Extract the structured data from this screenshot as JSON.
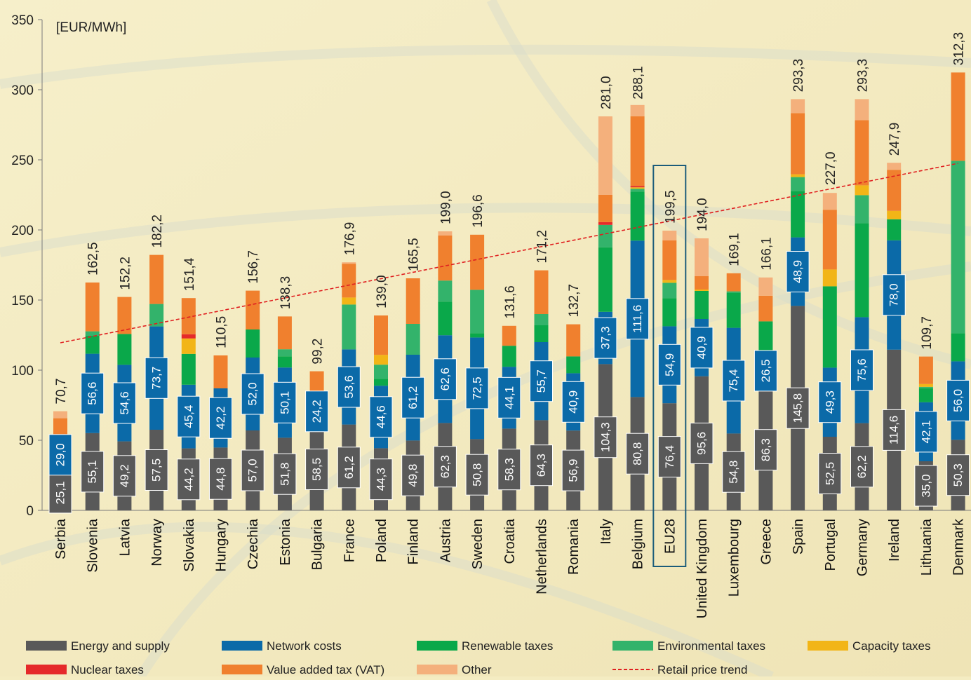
{
  "chart_data": {
    "type": "bar",
    "stacked": true,
    "unit_label": "[EUR/MWh]",
    "ylim": [
      0,
      350
    ],
    "yticks": [
      0,
      50,
      100,
      150,
      200,
      250,
      300,
      350
    ],
    "grid": false,
    "legend_position": "bottom",
    "categories": [
      "Serbia",
      "Slovenia",
      "Latvia",
      "Norway",
      "Slovakia",
      "Hungary",
      "Czechia",
      "Estonia",
      "Bulgaria",
      "France",
      "Poland",
      "Finland",
      "Austria",
      "Sweden",
      "Croatia",
      "Netherlands",
      "Romania",
      "Italy",
      "Belgium",
      "EU28",
      "United Kingdom",
      "Luxembourg",
      "Greece",
      "Spain",
      "Portugal",
      "Germany",
      "Ireland",
      "Lithuania",
      "Denmark"
    ],
    "highlight_category": "EU28",
    "totals": [
      70.7,
      162.5,
      152.2,
      182.2,
      151.4,
      110.5,
      156.7,
      138.3,
      99.2,
      176.9,
      139.0,
      165.5,
      199.0,
      196.6,
      131.6,
      171.2,
      132.7,
      281.0,
      288.1,
      199.5,
      194.0,
      169.1,
      166.1,
      293.3,
      227.0,
      293.3,
      247.9,
      109.7,
      312.3
    ],
    "total_labels": [
      "70,7",
      "162,5",
      "152,2",
      "182,2",
      "151,4",
      "110,5",
      "156,7",
      "138,3",
      "99,2",
      "176,9",
      "139,0",
      "165,5",
      "199,0",
      "196,6",
      "131,6",
      "171,2",
      "132,7",
      "281,0",
      "288,1",
      "199,5",
      "194,0",
      "169,1",
      "166,1",
      "293,3",
      "227,0",
      "293,3",
      "247,9",
      "109,7",
      "312,3"
    ],
    "series": [
      {
        "name": "Energy and supply",
        "color": "#595959",
        "values": [
          25.1,
          55.1,
          49.2,
          57.5,
          44.2,
          44.8,
          57.0,
          51.8,
          58.5,
          61.2,
          44.3,
          49.8,
          62.3,
          50.8,
          58.3,
          64.3,
          56.9,
          104.3,
          80.8,
          76.4,
          95.6,
          54.8,
          86.3,
          145.8,
          52.5,
          62.2,
          114.6,
          35.0,
          50.3
        ],
        "labels": [
          "25,1",
          "55,1",
          "49,2",
          "57,5",
          "44,2",
          "44,8",
          "57,0",
          "51,8",
          "58,5",
          "61,2",
          "44,3",
          "49,8",
          "62,3",
          "50,8",
          "58,3",
          "64,3",
          "56,9",
          "104,3",
          "80,8",
          "76,4",
          "95,6",
          "54,8",
          "86,3",
          "145,8",
          "52,5",
          "62,2",
          "114,6",
          "35,0",
          "50,3"
        ]
      },
      {
        "name": "Network costs",
        "color": "#0b6aa8",
        "values": [
          29.0,
          56.6,
          54.6,
          73.7,
          45.4,
          42.2,
          52.0,
          50.1,
          24.2,
          53.6,
          44.6,
          61.2,
          62.6,
          72.5,
          44.1,
          55.7,
          40.9,
          37.3,
          111.6,
          54.9,
          40.9,
          75.4,
          26.5,
          48.9,
          49.3,
          75.6,
          78.0,
          42.1,
          56.0
        ],
        "labels": [
          "29,0",
          "56,6",
          "54,6",
          "73,7",
          "45,4",
          "42,2",
          "52,0",
          "50,1",
          "24,2",
          "53,6",
          "44,6",
          "61,2",
          "62,6",
          "72,5",
          "44,1",
          "55,7",
          "40,9",
          "37,3",
          "111,6",
          "54,9",
          "40,9",
          "75,4",
          "26,5",
          "48,9",
          "49,3",
          "75,6",
          "78,0",
          "42,1",
          "56,0"
        ]
      },
      {
        "name": "Renewable taxes",
        "color": "#0aa84a",
        "values": [
          0,
          13,
          22,
          0,
          22,
          0,
          20,
          8,
          0,
          0,
          5,
          0,
          24,
          3,
          15,
          12,
          12,
          46,
          35,
          20,
          20,
          25,
          22,
          33,
          58,
          67,
          15,
          10,
          20
        ]
      },
      {
        "name": "Environmental taxes",
        "color": "#33b36b",
        "values": [
          0,
          3,
          0,
          16,
          0,
          0,
          0,
          5,
          0,
          32,
          10,
          22,
          15,
          31,
          0,
          8,
          0,
          16,
          2,
          11,
          0,
          1,
          0,
          10,
          0,
          20,
          0,
          1,
          123
        ]
      },
      {
        "name": "Capacity taxes",
        "color": "#f2b517",
        "values": [
          0,
          0,
          0,
          0,
          11,
          0,
          0,
          0,
          0,
          5,
          7,
          0,
          0,
          0,
          0,
          0,
          0,
          0,
          1,
          2,
          1,
          0,
          0,
          2,
          12,
          7,
          6,
          2,
          0
        ]
      },
      {
        "name": "Nuclear taxes",
        "color": "#e52a2a",
        "values": [
          0,
          0,
          0,
          0,
          3,
          0,
          0,
          0,
          0,
          0,
          0,
          0,
          0,
          0,
          0,
          0,
          0,
          2,
          1,
          0,
          0,
          0,
          0,
          0,
          0,
          0,
          0,
          0,
          0
        ]
      },
      {
        "name": "Value added tax (VAT)",
        "color": "#f0802e",
        "values": [
          11.6,
          34.8,
          26.4,
          35,
          25.8,
          23.5,
          27.7,
          23.4,
          16.5,
          24.1,
          28.1,
          32.5,
          32.1,
          39.3,
          14.2,
          31.2,
          22.9,
          19.4,
          49.7,
          28.2,
          9.5,
          12.9,
          18.3,
          43.6,
          42.6,
          46.5,
          29.3,
          19.6,
          63
        ]
      },
      {
        "name": "Other",
        "color": "#f4b07c",
        "values": [
          5,
          0,
          0,
          0,
          0,
          0,
          0,
          0,
          0,
          1,
          0,
          0,
          3,
          0,
          0,
          0,
          0,
          56,
          8,
          7,
          27,
          0,
          13,
          10,
          12,
          15,
          5,
          0,
          0
        ]
      }
    ],
    "trend": {
      "name": "Retail price trend",
      "color": "#e02020",
      "start": 119.5,
      "end": 247.5
    }
  }
}
